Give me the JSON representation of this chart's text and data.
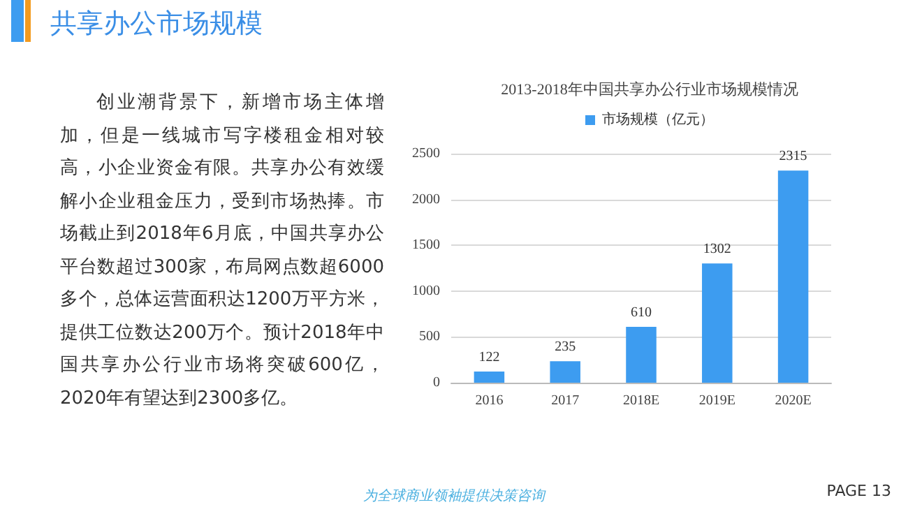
{
  "chart_data": {
    "type": "bar",
    "title": "共享办公市场规模",
    "subtitle": "2013-2018年中国共享办公行业市场规模情况",
    "categories": [
      "2016",
      "2017",
      "2018E",
      "2019E",
      "2020E"
    ],
    "series": [
      {
        "name": "市场规模（亿元）",
        "color": "#3d9cf0",
        "values": [
          122,
          235,
          610,
          1302,
          2315
        ]
      }
    ],
    "ylim": [
      0,
      2500
    ],
    "yticks": [
      0,
      500,
      1000,
      1500,
      2000,
      2500
    ],
    "grid": "y",
    "legend": "top",
    "data_labels": true,
    "annotations": [
      "创业潮背景下，新增市场主体增加，但是一线城市写字楼租金相对较高，小企业资金有限。共享办公有效缓解小企业租金压力，受到市场热捧。市场截止到2018年6月底，中国共享办公平台数超过300家，布局网点数超6000多个，总体运营面积达1200万平方米，提供工位数达200万个。预计2018年中国共享办公行业市场将突破600亿，2020年有望达到2300多亿。",
      "为全球商业领袖提供决策咨询",
      "PAGE 13"
    ]
  }
}
